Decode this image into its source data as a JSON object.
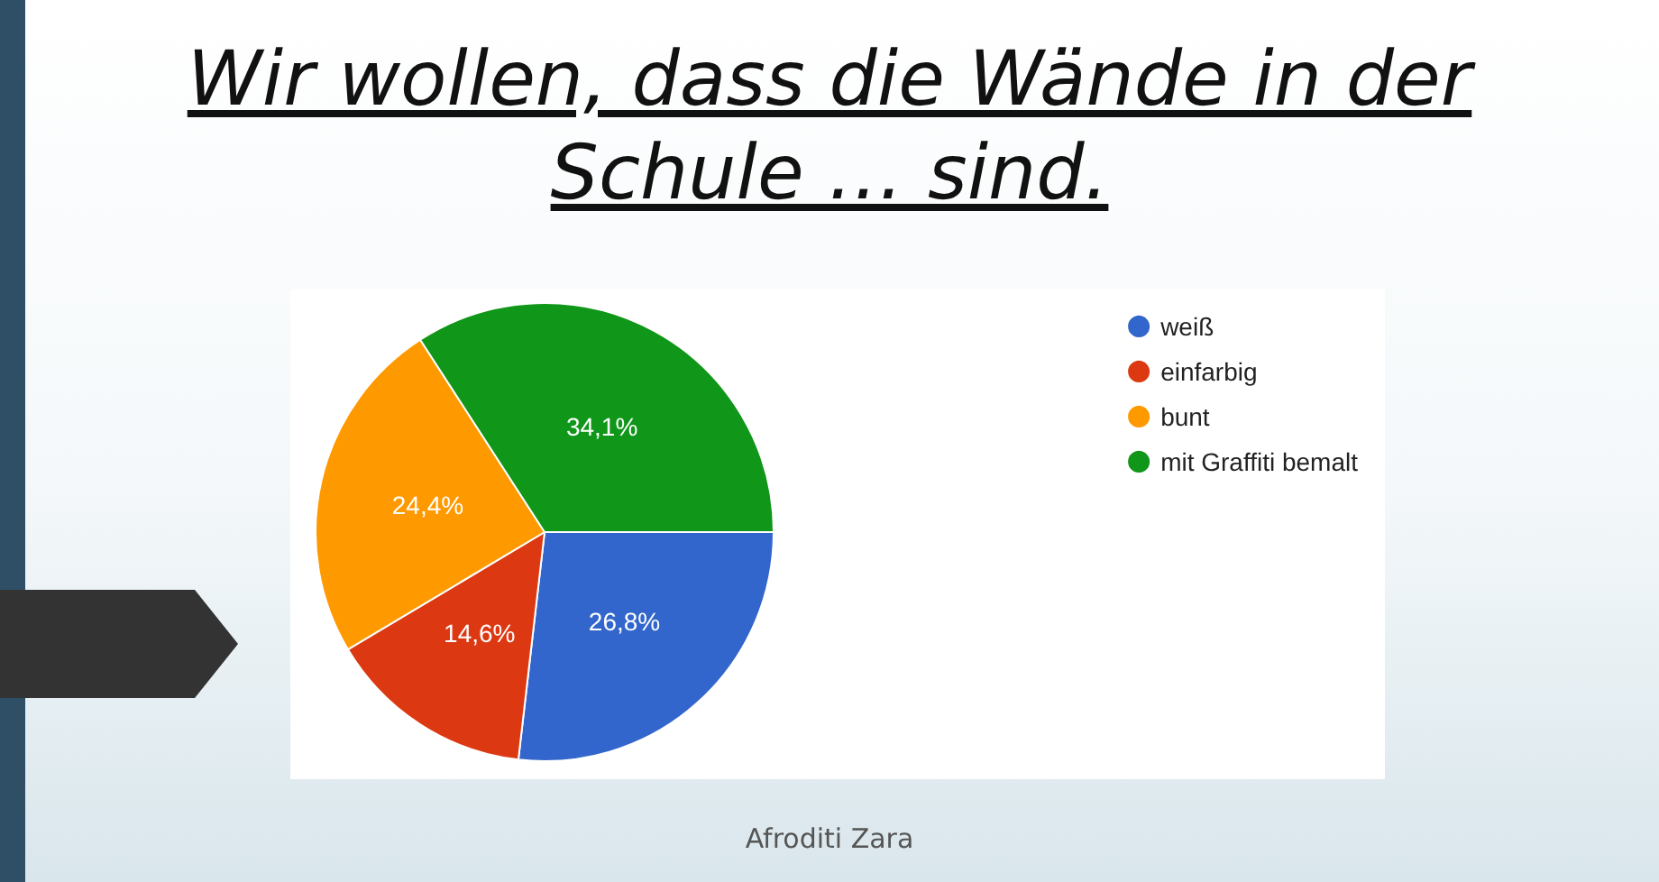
{
  "chart_data": {
    "type": "pie",
    "title": "Wir wollen, dass die Wände in der Schule … sind.",
    "categories": [
      "weiß",
      "einfarbig",
      "bunt",
      "mit Graffiti bemalt"
    ],
    "values": [
      26.8,
      14.6,
      24.4,
      34.1
    ],
    "colors": [
      "#3366cc",
      "#dc3912",
      "#ff9900",
      "#109618"
    ],
    "value_labels": [
      "26,8%",
      "14,6%",
      "24,4%",
      "34,1%"
    ],
    "legend": "top right",
    "annotations": [
      "Afroditi Zara"
    ]
  }
}
